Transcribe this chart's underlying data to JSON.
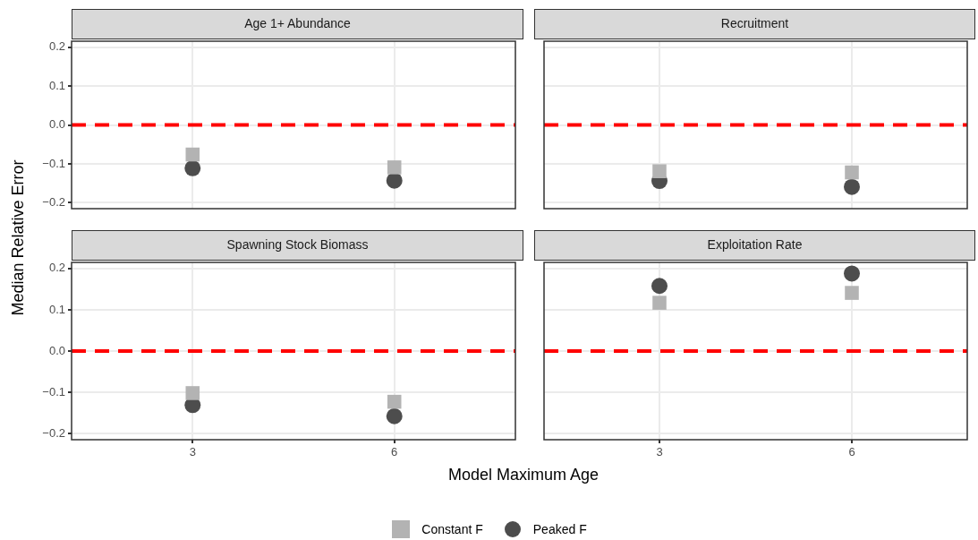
{
  "chart_data": [
    {
      "type": "scatter",
      "title": "Age 1+ Abundance",
      "ylabel": "Median Relative Error",
      "categories": [
        "3",
        "6"
      ],
      "ylim": [
        -0.215,
        0.215
      ],
      "yticks": [
        0.2,
        0.1,
        {
          "value": 0,
          "label": "0.0"
        },
        {
          "value": -0.1,
          "label": "−0.1"
        },
        {
          "value": -0.2,
          "label": "−0.2"
        }
      ],
      "grid": true,
      "tick_labels": "y",
      "ref_lines": [
        {
          "axis": "y",
          "value": 0,
          "color": "#ff0000",
          "line_style": "dashed"
        }
      ],
      "series": [
        {
          "color": "#b3b3b3",
          "marker": "square",
          "values": [
            -0.076,
            -0.109
          ]
        },
        {
          "color": "#4d4d4d",
          "marker": "circle",
          "values": [
            -0.111,
            -0.143
          ]
        }
      ]
    },
    {
      "type": "scatter",
      "title": "Recruitment",
      "categories": [
        "3",
        "6"
      ],
      "ylim": [
        -0.215,
        0.215
      ],
      "yticks": [
        0.2,
        0.1,
        0,
        -0.1,
        -0.2
      ],
      "grid": true,
      "tick_labels": false,
      "ref_lines": [
        {
          "axis": "y",
          "value": 0,
          "color": "#ff0000",
          "line_style": "dashed"
        }
      ],
      "series": [
        {
          "color": "#b3b3b3",
          "marker": "square",
          "values": [
            -0.119,
            -0.122
          ]
        },
        {
          "color": "#4d4d4d",
          "marker": "circle",
          "values": [
            -0.144,
            -0.159
          ]
        }
      ]
    },
    {
      "type": "scatter",
      "title": "Spawning Stock Biomass",
      "xlabel": "Model Maximum Age",
      "categories": [
        "3",
        "6"
      ],
      "ylim": [
        -0.215,
        0.215
      ],
      "yticks": [
        0.2,
        0.1,
        {
          "value": 0,
          "label": "0.0"
        },
        {
          "value": -0.1,
          "label": "−0.1"
        },
        {
          "value": -0.2,
          "label": "−0.2"
        }
      ],
      "grid": true,
      "legend": "bottom",
      "ref_lines": [
        {
          "axis": "y",
          "value": 0,
          "color": "#ff0000",
          "line_style": "dashed"
        }
      ],
      "series": [
        {
          "name": "Constant F",
          "color": "#b3b3b3",
          "marker": "square",
          "values": [
            -0.102,
            -0.123
          ]
        },
        {
          "name": "Peaked F",
          "color": "#4d4d4d",
          "marker": "circle",
          "values": [
            -0.131,
            -0.158
          ]
        }
      ]
    },
    {
      "type": "scatter",
      "title": "Exploitation Rate",
      "categories": [
        "3",
        "6"
      ],
      "ylim": [
        -0.215,
        0.215
      ],
      "yticks": [
        0.2,
        0.1,
        0,
        -0.1,
        -0.2
      ],
      "grid": true,
      "tick_labels": "x",
      "ref_lines": [
        {
          "axis": "y",
          "value": 0,
          "color": "#ff0000",
          "line_style": "dashed"
        }
      ],
      "series": [
        {
          "color": "#b3b3b3",
          "marker": "square",
          "values": [
            0.117,
            0.141
          ]
        },
        {
          "color": "#4d4d4d",
          "marker": "circle",
          "values": [
            0.158,
            0.188
          ]
        }
      ]
    }
  ]
}
